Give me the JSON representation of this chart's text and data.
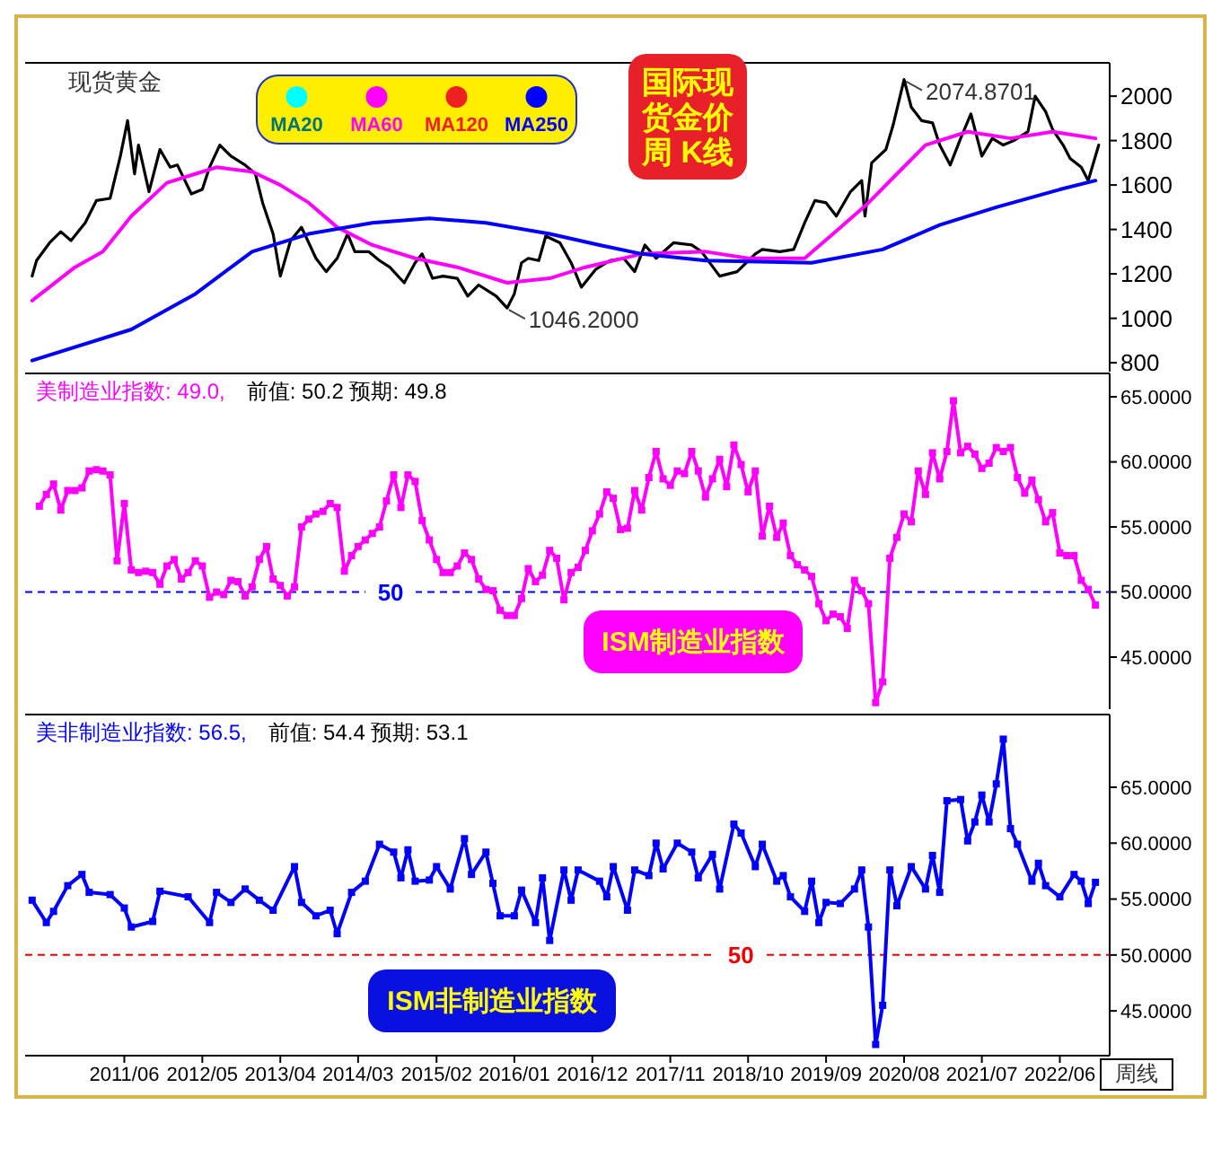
{
  "chart_data": [
    {
      "type": "line",
      "title": "现货黄金",
      "xlim": [
        "2010-04",
        "2023-01"
      ],
      "ylim": [
        760,
        2150
      ],
      "yticks": [
        800,
        1000,
        1200,
        1400,
        1600,
        1800,
        2000
      ],
      "tick_labels": "y",
      "legend": "top",
      "series": [
        {
          "color": "#000000",
          "x": [
            "2010-05-01",
            "2010-05-20",
            "2010-07-15",
            "2010-09-01",
            "2010-10-15",
            "2010-12-15",
            "2011-02-01",
            "2011-04-01",
            "2011-05-15",
            "2011-06-15",
            "2011-07-15",
            "2011-08-01",
            "2011-09-15",
            "2011-11-01",
            "2011-12-15",
            "2012-01-15",
            "2012-03-15",
            "2012-05-01",
            "2012-06-01",
            "2012-07-15",
            "2012-09-01",
            "2012-11-01",
            "2012-12-15",
            "2013-01-15",
            "2013-03-01",
            "2013-04-01",
            "2013-05-15",
            "2013-07-01",
            "2013-09-01",
            "2013-10-15",
            "2013-12-01",
            "2014-01-15",
            "2014-02-15",
            "2014-04-15",
            "2014-06-01",
            "2014-07-15",
            "2014-09-15",
            "2014-11-01",
            "2014-12-01",
            "2015-01-15",
            "2015-03-01",
            "2015-05-01",
            "2015-06-15",
            "2015-08-01",
            "2015-09-15",
            "2015-10-15",
            "2015-12-01",
            "2016-01-01",
            "2016-02-01",
            "2016-03-01",
            "2016-04-15",
            "2016-05-15",
            "2016-07-15",
            "2016-09-01",
            "2016-10-15",
            "2016-12-15",
            "2017-02-15",
            "2017-04-15",
            "2017-06-01",
            "2017-07-15",
            "2017-09-01",
            "2017-11-15",
            "2018-02-01",
            "2018-03-15",
            "2018-06-01",
            "2018-08-15",
            "2018-11-01",
            "2018-12-01",
            "2019-02-15",
            "2019-04-15",
            "2019-06-01",
            "2019-07-15",
            "2019-09-01",
            "2019-10-15",
            "2019-12-15",
            "2020-02-01",
            "2020-02-15",
            "2020-03-15",
            "2020-05-15",
            "2020-06-15",
            "2020-08-01",
            "2020-09-01",
            "2020-10-15",
            "2020-12-01",
            "2021-01-01",
            "2021-02-15",
            "2021-04-01",
            "2021-05-15",
            "2021-07-01",
            "2021-08-15",
            "2021-10-01",
            "2021-11-15",
            "2022-01-15",
            "2022-02-15",
            "2022-04-01",
            "2022-05-01",
            "2022-06-15",
            "2022-07-15",
            "2022-09-01",
            "2022-10-01",
            "2022-11-15"
          ],
          "values": [
            1190,
            1260,
            1340,
            1390,
            1350,
            1430,
            1530,
            1540,
            1730,
            1890,
            1650,
            1780,
            1570,
            1760,
            1680,
            1690,
            1560,
            1580,
            1680,
            1780,
            1730,
            1690,
            1650,
            1520,
            1380,
            1190,
            1350,
            1410,
            1270,
            1210,
            1270,
            1380,
            1300,
            1300,
            1260,
            1230,
            1160,
            1250,
            1290,
            1180,
            1190,
            1180,
            1100,
            1150,
            1120,
            1100,
            1046.2,
            1110,
            1250,
            1270,
            1260,
            1370,
            1340,
            1250,
            1140,
            1220,
            1260,
            1270,
            1210,
            1330,
            1270,
            1340,
            1330,
            1300,
            1190,
            1210,
            1290,
            1310,
            1300,
            1310,
            1430,
            1530,
            1520,
            1460,
            1570,
            1620,
            1460,
            1700,
            1760,
            1870,
            2074.87,
            1950,
            1890,
            1880,
            1780,
            1690,
            1810,
            1920,
            1730,
            1810,
            1780,
            1800,
            1840,
            2000,
            1930,
            1850,
            1780,
            1720,
            1680,
            1620,
            1780
          ]
        },
        {
          "name": "MA20",
          "color": "#00ffff"
        },
        {
          "name": "MA60",
          "color": "#ff00ff",
          "x": [
            "2010-05",
            "2010-11",
            "2011-03",
            "2011-07",
            "2011-12",
            "2012-04",
            "2012-07",
            "2012-12",
            "2013-04",
            "2013-08",
            "2013-12",
            "2014-05",
            "2014-11",
            "2015-05",
            "2015-12",
            "2016-06",
            "2016-11",
            "2017-07",
            "2018-04",
            "2018-10",
            "2019-06",
            "2019-10",
            "2020-03",
            "2020-07",
            "2020-11",
            "2021-05",
            "2021-11",
            "2022-05",
            "2022-11"
          ],
          "values": [
            1080,
            1230,
            1300,
            1460,
            1610,
            1650,
            1680,
            1660,
            1600,
            1520,
            1410,
            1330,
            1270,
            1230,
            1160,
            1180,
            1230,
            1290,
            1300,
            1270,
            1270,
            1380,
            1520,
            1650,
            1780,
            1840,
            1810,
            1840,
            1810
          ]
        },
        {
          "name": "MA120",
          "color": "#ee2020"
        },
        {
          "name": "MA250",
          "color": "#0000ff",
          "x": [
            "2010-05",
            "2011-07",
            "2012-04",
            "2012-12",
            "2013-08",
            "2014-05",
            "2015-01",
            "2015-09",
            "2016-06",
            "2017-01",
            "2017-07",
            "2018-04",
            "2019-07",
            "2020-05",
            "2021-01",
            "2021-09",
            "2022-06",
            "2022-11"
          ],
          "values": [
            810,
            950,
            1110,
            1300,
            1380,
            1430,
            1450,
            1430,
            1380,
            1330,
            1290,
            1260,
            1250,
            1310,
            1420,
            1500,
            1580,
            1620
          ]
        }
      ],
      "annotations": [
        {
          "text": "2074.8701",
          "x": "2020-08-01",
          "y": 2074.87
        },
        {
          "text": "1046.2000",
          "x": "2015-12-01",
          "y": 1046.2
        },
        "国际现货金价周 K线"
      ]
    },
    {
      "type": "line",
      "title": "美制造业指数: 49.0,",
      "subtitle": "前值: 50.2  预期: 49.8",
      "xlim": [
        "2010-04",
        "2023-01"
      ],
      "ylim": [
        41,
        66.8
      ],
      "yticks": [
        {
          "value": 45,
          "label": "45.0000"
        },
        {
          "value": 50,
          "label": "50.0000"
        },
        {
          "value": 55,
          "label": "55.0000"
        },
        {
          "value": 60,
          "label": "60.0000"
        },
        {
          "value": 65,
          "label": "65.0000"
        }
      ],
      "tick_labels": "y",
      "marker": "square",
      "line_style": "solid",
      "ref_lines": [
        {
          "axis": "y",
          "value": 50,
          "label": "50",
          "color": "#0000ff",
          "line_style": "dashed"
        }
      ],
      "series": [
        {
          "color": "#ff00ff",
          "x": [
            "2010-06",
            "2010-07",
            "2010-08",
            "2010-09",
            "2010-10",
            "2010-11",
            "2010-12",
            "2011-01",
            "2011-02",
            "2011-03",
            "2011-04",
            "2011-05",
            "2011-06",
            "2011-07",
            "2011-08",
            "2011-09",
            "2011-10",
            "2011-11",
            "2011-12",
            "2012-01",
            "2012-02",
            "2012-03",
            "2012-04",
            "2012-05",
            "2012-06",
            "2012-07",
            "2012-08",
            "2012-09",
            "2012-10",
            "2012-11",
            "2012-12",
            "2013-01",
            "2013-02",
            "2013-03",
            "2013-04",
            "2013-05",
            "2013-06",
            "2013-07",
            "2013-08",
            "2013-09",
            "2013-10",
            "2013-11",
            "2013-12",
            "2014-01",
            "2014-02",
            "2014-03",
            "2014-04",
            "2014-05",
            "2014-06",
            "2014-07",
            "2014-08",
            "2014-09",
            "2014-10",
            "2014-11",
            "2014-12",
            "2015-01",
            "2015-02",
            "2015-03",
            "2015-04",
            "2015-05",
            "2015-06",
            "2015-07",
            "2015-08",
            "2015-09",
            "2015-10",
            "2015-11",
            "2015-12",
            "2016-01",
            "2016-02",
            "2016-03",
            "2016-04",
            "2016-05",
            "2016-06",
            "2016-07",
            "2016-08",
            "2016-09",
            "2016-10",
            "2016-11",
            "2016-12",
            "2017-01",
            "2017-02",
            "2017-03",
            "2017-04",
            "2017-05",
            "2017-06",
            "2017-07",
            "2017-08",
            "2017-09",
            "2017-10",
            "2017-11",
            "2017-12",
            "2018-01",
            "2018-02",
            "2018-03",
            "2018-04",
            "2018-05",
            "2018-06",
            "2018-07",
            "2018-08",
            "2018-09",
            "2018-10",
            "2018-11",
            "2018-12",
            "2019-01",
            "2019-02",
            "2019-03",
            "2019-04",
            "2019-05",
            "2019-06",
            "2019-07",
            "2019-08",
            "2019-09",
            "2019-10",
            "2019-11",
            "2019-12",
            "2020-01",
            "2020-02",
            "2020-03",
            "2020-04",
            "2020-05",
            "2020-06",
            "2020-07",
            "2020-08",
            "2020-09",
            "2020-10",
            "2020-11",
            "2020-12",
            "2021-01",
            "2021-02",
            "2021-03",
            "2021-04",
            "2021-05",
            "2021-06",
            "2021-07",
            "2021-08",
            "2021-09",
            "2021-10",
            "2021-11",
            "2021-12",
            "2022-01",
            "2022-02",
            "2022-03",
            "2022-04",
            "2022-05",
            "2022-06",
            "2022-07",
            "2022-08",
            "2022-09",
            "2022-10",
            "2022-11"
          ],
          "values": [
            56.6,
            57.5,
            58.3,
            56.3,
            57.8,
            57.8,
            58.0,
            59.3,
            59.4,
            59.3,
            59.0,
            52.4,
            56.8,
            51.7,
            51.5,
            51.6,
            51.5,
            50.6,
            52.0,
            52.5,
            51.0,
            51.5,
            52.4,
            52.0,
            49.6,
            50.0,
            49.8,
            50.9,
            50.8,
            49.7,
            50.4,
            52.5,
            53.5,
            51.0,
            50.5,
            49.7,
            50.4,
            55.0,
            55.6,
            56.0,
            56.2,
            56.8,
            56.5,
            51.6,
            52.8,
            53.5,
            54.0,
            54.5,
            55.0,
            57.0,
            59.0,
            56.5,
            59.0,
            58.5,
            55.5,
            54.0,
            52.5,
            51.5,
            51.5,
            52.0,
            53.0,
            52.5,
            51.0,
            50.2,
            50.1,
            48.6,
            48.2,
            48.2,
            49.5,
            51.8,
            50.8,
            51.3,
            53.2,
            52.6,
            49.4,
            51.5,
            51.9,
            53.2,
            54.7,
            56.0,
            57.7,
            57.2,
            54.8,
            54.9,
            57.8,
            56.3,
            58.8,
            60.8,
            58.7,
            58.2,
            59.3,
            59.1,
            60.8,
            59.3,
            57.3,
            58.7,
            60.2,
            58.1,
            61.3,
            59.8,
            57.7,
            59.3,
            54.3,
            56.6,
            54.2,
            55.3,
            52.8,
            52.1,
            51.7,
            51.2,
            49.1,
            47.8,
            48.3,
            48.1,
            47.2,
            50.9,
            50.1,
            49.1,
            41.5,
            43.1,
            52.6,
            54.2,
            56.0,
            55.4,
            59.3,
            57.5,
            60.7,
            58.7,
            60.8,
            64.7,
            60.7,
            61.2,
            60.6,
            59.5,
            59.9,
            61.1,
            60.8,
            61.1,
            58.8,
            57.6,
            58.6,
            57.1,
            55.4,
            56.1,
            53.0,
            52.8,
            52.8,
            50.9,
            50.2,
            49.0
          ]
        }
      ],
      "annotations": [
        "ISM制造业指数"
      ]
    },
    {
      "type": "line",
      "title": "美非制造业指数: 56.5,",
      "subtitle": "前值: 54.4  预期: 53.1",
      "xlabel": "周线",
      "xlim": [
        "2010-04",
        "2023-01"
      ],
      "ylim": [
        41,
        71.5
      ],
      "yticks": [
        {
          "value": 45,
          "label": "45.0000"
        },
        {
          "value": 50,
          "label": "50.0000"
        },
        {
          "value": 55,
          "label": "55.0000"
        },
        {
          "value": 60,
          "label": "60.0000"
        },
        {
          "value": 65,
          "label": "65.0000"
        }
      ],
      "xticks": [
        {
          "value": "2011-06",
          "label": "2011/06"
        },
        {
          "value": "2012-05",
          "label": "2012/05"
        },
        {
          "value": "2013-04",
          "label": "2013/04"
        },
        {
          "value": "2014-03",
          "label": "2014/03"
        },
        {
          "value": "2015-02",
          "label": "2015/02"
        },
        {
          "value": "2016-01",
          "label": "2016/01"
        },
        {
          "value": "2016-12",
          "label": "2016/12"
        },
        {
          "value": "2017-11",
          "label": "2017/11"
        },
        {
          "value": "2018-10",
          "label": "2018/10"
        },
        {
          "value": "2019-09",
          "label": "2019/09"
        },
        {
          "value": "2020-08",
          "label": "2020/08"
        },
        {
          "value": "2021-07",
          "label": "2021/07"
        },
        {
          "value": "2022-06",
          "label": "2022/06"
        }
      ],
      "marker": "square",
      "line_style": "solid",
      "ref_lines": [
        {
          "axis": "y",
          "value": 50,
          "label": "50",
          "color": "#ee0000",
          "line_style": "dashed"
        }
      ],
      "series": [
        {
          "color": "#0000ff",
          "x": [
            "2010-05",
            "2010-07",
            "2010-08",
            "2010-10",
            "2010-12",
            "2011-01",
            "2011-04",
            "2011-06",
            "2011-07",
            "2011-10",
            "2011-11",
            "2012-03",
            "2012-06",
            "2012-07",
            "2012-09",
            "2012-11",
            "2013-01",
            "2013-03",
            "2013-06",
            "2013-07",
            "2013-09",
            "2013-11",
            "2013-12",
            "2014-02",
            "2014-04",
            "2014-06",
            "2014-08",
            "2014-09",
            "2014-10",
            "2014-11",
            "2015-01",
            "2015-02",
            "2015-04",
            "2015-06",
            "2015-07",
            "2015-09",
            "2015-10",
            "2015-11",
            "2016-01",
            "2016-02",
            "2016-04",
            "2016-05",
            "2016-06",
            "2016-08",
            "2016-09",
            "2016-10",
            "2017-01",
            "2017-02",
            "2017-03",
            "2017-05",
            "2017-06",
            "2017-08",
            "2017-09",
            "2017-10",
            "2017-12",
            "2018-02",
            "2018-03",
            "2018-05",
            "2018-06",
            "2018-08",
            "2018-09",
            "2018-11",
            "2018-12",
            "2019-02",
            "2019-03",
            "2019-04",
            "2019-06",
            "2019-07",
            "2019-08",
            "2019-09",
            "2019-11",
            "2020-01",
            "2020-02",
            "2020-03",
            "2020-04",
            "2020-05",
            "2020-06",
            "2020-07",
            "2020-09",
            "2020-11",
            "2020-12",
            "2021-01",
            "2021-02",
            "2021-04",
            "2021-05",
            "2021-06",
            "2021-07",
            "2021-08",
            "2021-09",
            "2021-10",
            "2021-11",
            "2021-12",
            "2022-02",
            "2022-03",
            "2022-04",
            "2022-06",
            "2022-08",
            "2022-09",
            "2022-10",
            "2022-11"
          ],
          "values": [
            54.9,
            52.9,
            53.9,
            56.2,
            57.2,
            55.6,
            55.4,
            54.2,
            52.5,
            53.0,
            55.7,
            55.2,
            52.9,
            55.6,
            54.7,
            55.9,
            54.9,
            54.0,
            57.9,
            54.7,
            53.5,
            54.0,
            51.9,
            55.6,
            56.6,
            59.9,
            59.2,
            56.9,
            59.4,
            56.6,
            56.7,
            57.9,
            55.9,
            60.4,
            57.2,
            59.2,
            56.4,
            53.5,
            53.5,
            55.8,
            52.9,
            56.9,
            51.3,
            57.6,
            54.9,
            57.6,
            56.6,
            55.2,
            57.9,
            54.0,
            57.6,
            57.1,
            60.0,
            57.7,
            60.0,
            59.2,
            56.9,
            59.0,
            55.9,
            61.7,
            60.9,
            57.9,
            59.9,
            56.6,
            57.1,
            55.2,
            53.9,
            56.6,
            52.9,
            54.7,
            54.6,
            55.9,
            57.6,
            52.5,
            42.0,
            45.5,
            57.6,
            54.4,
            57.9,
            55.9,
            58.9,
            55.6,
            63.8,
            63.9,
            60.2,
            61.9,
            64.3,
            61.9,
            65.3,
            69.3,
            61.3,
            59.9,
            56.6,
            58.2,
            56.2,
            55.2,
            57.2,
            56.6,
            54.6,
            56.5
          ]
        }
      ],
      "annotations": [
        "ISM非制造业指数"
      ]
    }
  ]
}
